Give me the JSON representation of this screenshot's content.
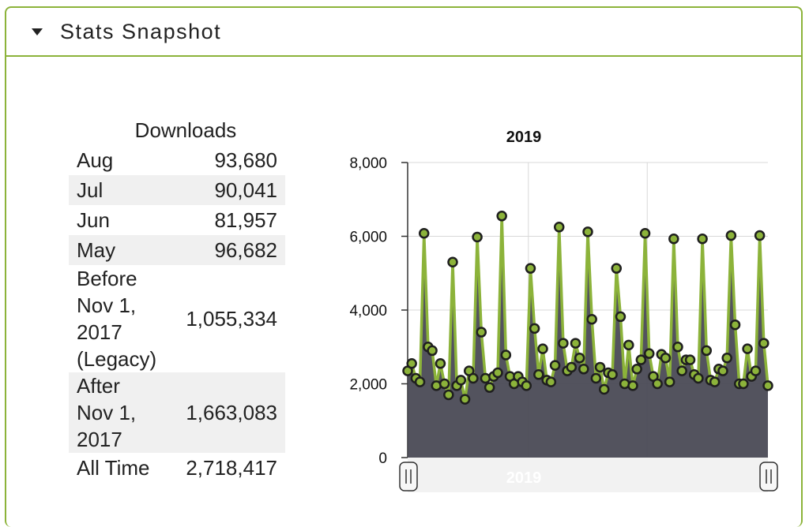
{
  "panel": {
    "title": "Stats Snapshot"
  },
  "table": {
    "caption": "Downloads",
    "rows": [
      {
        "label": "Aug",
        "value": "93,680"
      },
      {
        "label": "Jul",
        "value": "90,041"
      },
      {
        "label": "Jun",
        "value": "81,957"
      },
      {
        "label": "May",
        "value": "96,682"
      },
      {
        "label": "Before Nov 1, 2017 (Legacy)",
        "value": "1,055,334"
      },
      {
        "label": "After Nov 1, 2017",
        "value": "1,663,083"
      },
      {
        "label": "All Time",
        "value": "2,718,417"
      }
    ]
  },
  "chart_data": {
    "type": "area",
    "title": "2019",
    "navigator_label": "2019",
    "ylim": [
      0,
      8000
    ],
    "yticks": [
      "0",
      "2,000",
      "4,000",
      "6,000",
      "8,000"
    ],
    "grid": true,
    "colors": {
      "line": "#8cb33a",
      "fill": "#4a4a55",
      "marker": "#8cb33a",
      "marker_stroke": "#1f1f1f"
    },
    "series": [
      {
        "values": [
          2350,
          2550,
          2150,
          2050,
          6080,
          3000,
          2900,
          1950,
          2550,
          2000,
          1700,
          5300,
          1950,
          2100,
          1580,
          2350,
          2150,
          5980,
          3400,
          2150,
          1900,
          2200,
          2300,
          6550,
          2780,
          2200,
          2000,
          2200,
          2050,
          1950,
          5130,
          3500,
          2250,
          2950,
          2100,
          2050,
          2500,
          6250,
          3100,
          2350,
          2450,
          3100,
          2700,
          2400,
          6120,
          3750,
          2150,
          2450,
          1850,
          2300,
          2250,
          5130,
          3820,
          2000,
          3050,
          1950,
          2400,
          2650,
          6080,
          2820,
          2200,
          2000,
          2800,
          2700,
          2050,
          5930,
          3000,
          2350,
          2650,
          2650,
          2250,
          2150,
          5930,
          2900,
          2100,
          2050,
          2400,
          2350,
          2700,
          6020,
          3600,
          2000,
          2000,
          2950,
          2200,
          2350,
          6020,
          3100,
          1950
        ]
      }
    ]
  }
}
